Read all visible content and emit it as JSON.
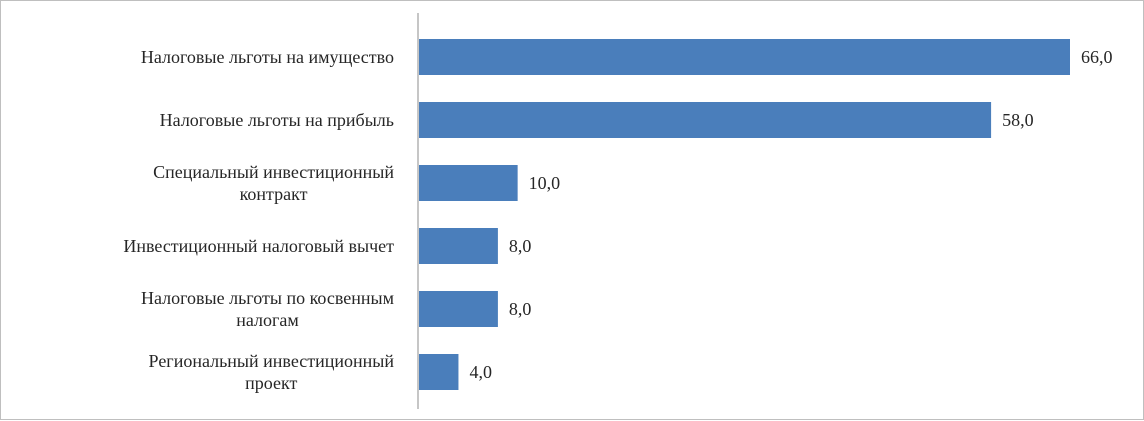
{
  "chart_data": {
    "type": "bar",
    "orientation": "horizontal",
    "categories": [
      [
        "Налоговые льготы на имущество"
      ],
      [
        "Налоговые льготы на прибыль"
      ],
      [
        "Специальный инвестиционный",
        "контракт"
      ],
      [
        "Инвестиционный налоговый вычет"
      ],
      [
        "Налоговые льготы по косвенным",
        "налогам"
      ],
      [
        "Региональный инвестиционный",
        "проект"
      ]
    ],
    "values": [
      66.0,
      58.0,
      10.0,
      8.0,
      8.0,
      4.0
    ],
    "value_labels": [
      "66,0",
      "58,0",
      "10,0",
      "8,0",
      "8,0",
      "4,0"
    ],
    "xlim": [
      0,
      70
    ],
    "bar_color": "#4a7ebb",
    "axis_color": "#8c8c8c",
    "grid": false,
    "legend": "none",
    "title": "",
    "xlabel": "",
    "ylabel": ""
  }
}
